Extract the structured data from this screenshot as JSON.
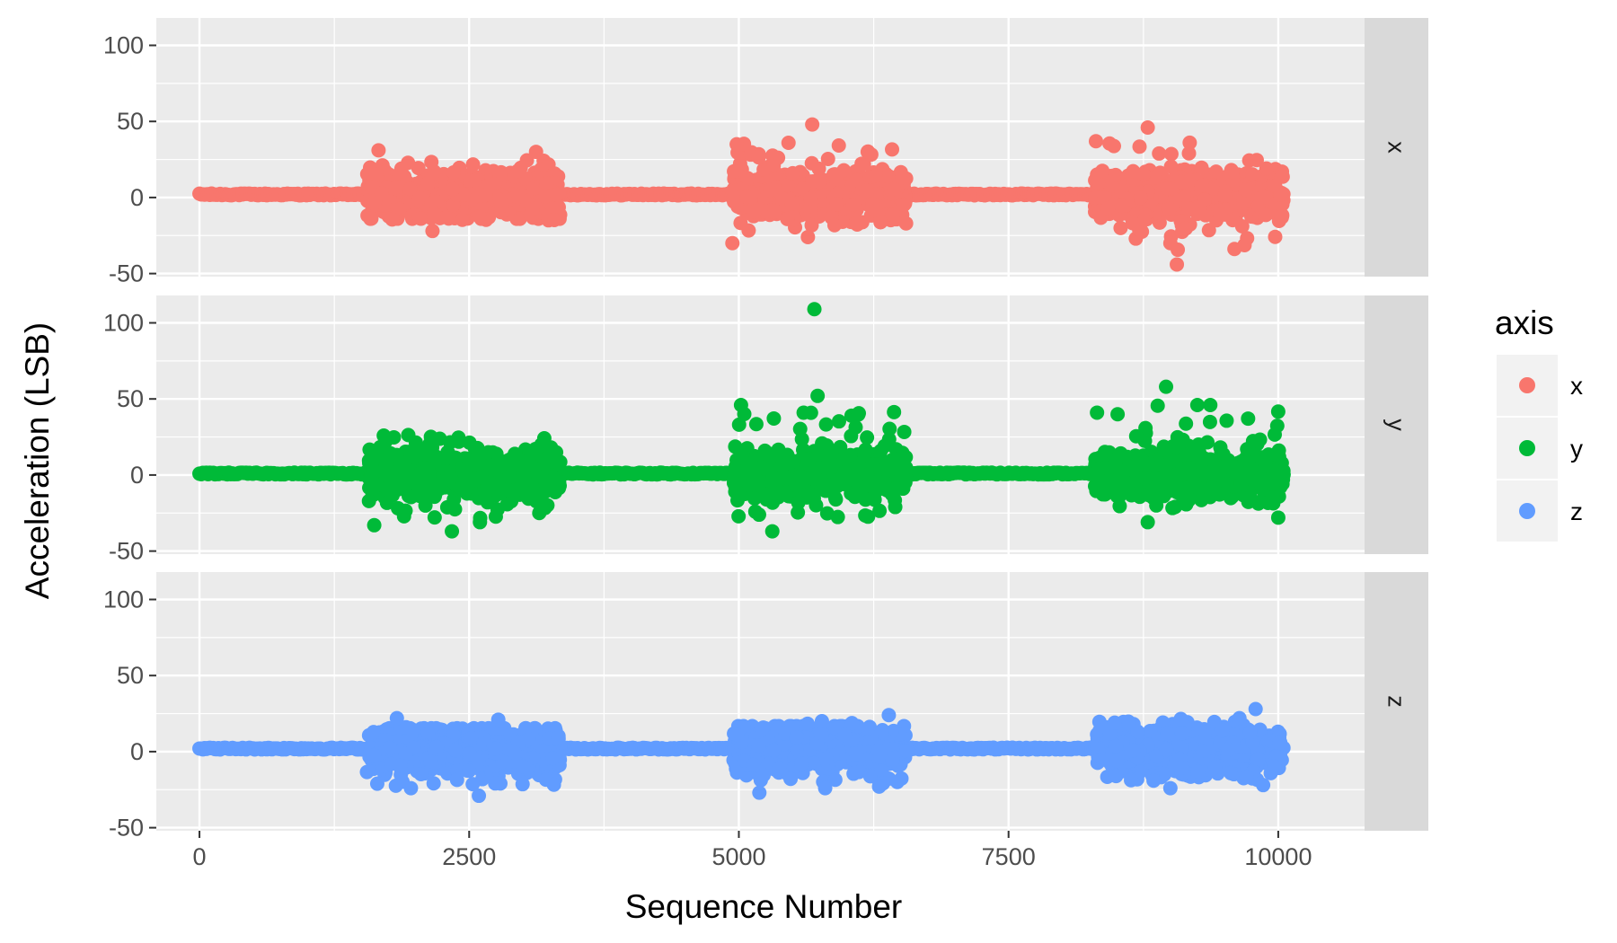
{
  "chart_data": {
    "type": "scatter",
    "xlabel": "Sequence Number",
    "ylabel": "Acceleration (LSB)",
    "xlim": [
      -400,
      10800
    ],
    "ylim": [
      -52,
      118
    ],
    "x_ticks": [
      0,
      2500,
      5000,
      7500,
      10000
    ],
    "y_ticks": [
      -50,
      0,
      50,
      100
    ],
    "grid": true,
    "legend": {
      "title": "axis",
      "position": "right",
      "entries": [
        "x",
        "y",
        "z"
      ]
    },
    "colors": {
      "x": "#F8766D",
      "y": "#00BA38",
      "z": "#619CFF"
    },
    "active_ranges": [
      [
        1550,
        3350
      ],
      [
        4950,
        6550
      ],
      [
        8300,
        10050
      ]
    ],
    "x_range": [
      0,
      10050
    ],
    "panels": [
      {
        "name": "x",
        "strip_label": "x",
        "baseline": 2,
        "spread": [
          [
            -20,
            31
          ],
          [
            -29,
            48
          ],
          [
            -44,
            46
          ]
        ],
        "notable_points": [
          {
            "x": 5680,
            "y": 48
          },
          {
            "x": 8790,
            "y": 46
          },
          {
            "x": 9060,
            "y": -44
          },
          {
            "x": 4940,
            "y": -30
          },
          {
            "x": 6550,
            "y": -17
          },
          {
            "x": 2160,
            "y": -22
          },
          {
            "x": 5640,
            "y": -26
          },
          {
            "x": 9000,
            "y": -30
          },
          {
            "x": 4980,
            "y": 35
          },
          {
            "x": 8310,
            "y": 37
          },
          {
            "x": 3120,
            "y": 30
          },
          {
            "x": 1660,
            "y": 31
          }
        ]
      },
      {
        "name": "y",
        "strip_label": "y",
        "baseline": 1,
        "spread": [
          [
            -36,
            33
          ],
          [
            -36,
            52
          ],
          [
            -31,
            58
          ]
        ],
        "notable_points": [
          {
            "x": 5700,
            "y": 109
          },
          {
            "x": 8960,
            "y": 58
          },
          {
            "x": 5730,
            "y": 52
          },
          {
            "x": 5020,
            "y": 46
          },
          {
            "x": 9250,
            "y": 46
          },
          {
            "x": 9370,
            "y": 46
          },
          {
            "x": 2340,
            "y": -37
          },
          {
            "x": 2600,
            "y": -31
          },
          {
            "x": 1620,
            "y": -33
          },
          {
            "x": 5310,
            "y": -37
          },
          {
            "x": 10000,
            "y": -28
          },
          {
            "x": 8790,
            "y": -31
          },
          {
            "x": 3150,
            "y": -25
          },
          {
            "x": 8320,
            "y": 41
          }
        ]
      },
      {
        "name": "z",
        "strip_label": "z",
        "baseline": 2,
        "spread": [
          [
            -29,
            22
          ],
          [
            -27,
            24
          ],
          [
            -24,
            28
          ]
        ],
        "notable_points": [
          {
            "x": 1830,
            "y": 22
          },
          {
            "x": 2770,
            "y": 21
          },
          {
            "x": 5770,
            "y": 20
          },
          {
            "x": 6390,
            "y": 24
          },
          {
            "x": 9790,
            "y": 28
          },
          {
            "x": 9640,
            "y": 22
          },
          {
            "x": 2590,
            "y": -29
          },
          {
            "x": 5190,
            "y": -27
          },
          {
            "x": 6300,
            "y": -23
          },
          {
            "x": 9000,
            "y": -24
          },
          {
            "x": 9860,
            "y": -22
          },
          {
            "x": 1960,
            "y": -24
          },
          {
            "x": 5800,
            "y": -24
          }
        ]
      }
    ]
  }
}
